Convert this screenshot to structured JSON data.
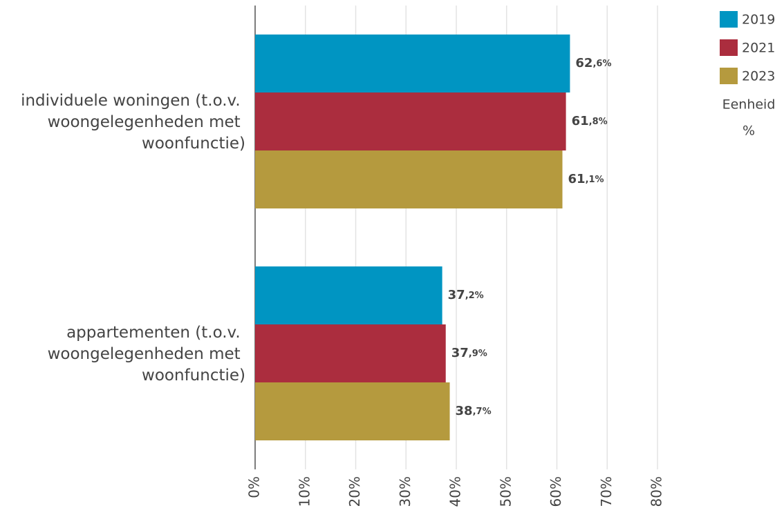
{
  "chart_data": {
    "type": "hbar",
    "categories": [
      "individuele woningen (t.o.v. woongelegenheden met woonfunctie)",
      "appartementen (t.o.v. woongelegenheden met woonfunctie)"
    ],
    "series": [
      {
        "name": "2019",
        "color": "#0095c2",
        "values": [
          62.6,
          37.2
        ],
        "value_labels": [
          "62,6%",
          "37,2%"
        ]
      },
      {
        "name": "2021",
        "color": "#ab2d3e",
        "values": [
          61.8,
          37.9
        ],
        "value_labels": [
          "61,8%",
          "37,9%"
        ]
      },
      {
        "name": "2023",
        "color": "#b59a3e",
        "values": [
          61.1,
          38.7
        ],
        "value_labels": [
          "61,1%",
          "38,7%"
        ]
      }
    ],
    "xlim": [
      0,
      80
    ],
    "xticks": [
      {
        "value": 0,
        "label": "0%"
      },
      {
        "value": 10,
        "label": "10%"
      },
      {
        "value": 20,
        "label": "20%"
      },
      {
        "value": 30,
        "label": "30%"
      },
      {
        "value": 40,
        "label": "40%"
      },
      {
        "value": 50,
        "label": "50%"
      },
      {
        "value": 60,
        "label": "60%"
      },
      {
        "value": 70,
        "label": "70%"
      },
      {
        "value": 80,
        "label": "80%"
      }
    ],
    "grid": true,
    "legend_position": "top-right",
    "unit_label": "Eenheid",
    "unit": "%"
  }
}
